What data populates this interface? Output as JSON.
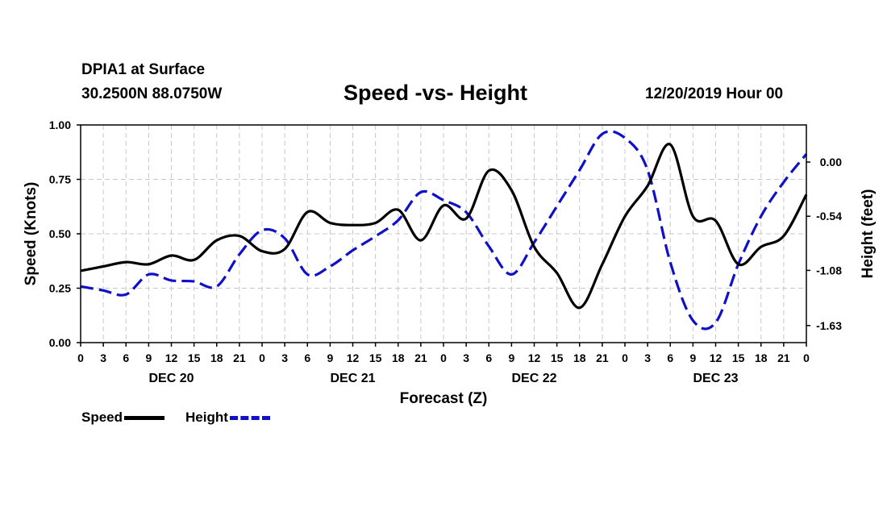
{
  "header": {
    "station": "DPIA1 at Surface",
    "coords": "30.2500N 88.0750W",
    "title": "Speed -vs- Height",
    "timestamp": "12/20/2019 Hour 00"
  },
  "legend": {
    "speed_label": "Speed",
    "height_label": "Height"
  },
  "colors": {
    "speed": "#000000",
    "height": "#1010c8",
    "grid": "#c8c8c8"
  },
  "chart_data": {
    "type": "line",
    "title": "Speed -vs- Height",
    "xlabel": "Forecast (Z)",
    "ylabel": "Speed (Knots)",
    "y2label": "Height (feet)",
    "xlim": [
      0,
      96
    ],
    "ylim": [
      0,
      1
    ],
    "y2lim": [
      -1.8,
      0.37
    ],
    "x_ticks": [
      0,
      3,
      6,
      9,
      12,
      15,
      18,
      21,
      24,
      27,
      30,
      33,
      36,
      39,
      42,
      45,
      48,
      51,
      54,
      57,
      60,
      63,
      66,
      69,
      72,
      75,
      78,
      81,
      84,
      87,
      90,
      93,
      96
    ],
    "x_tick_labels": [
      "0",
      "3",
      "6",
      "9",
      "12",
      "15",
      "18",
      "21",
      "0",
      "3",
      "6",
      "9",
      "12",
      "15",
      "18",
      "21",
      "0",
      "3",
      "6",
      "9",
      "12",
      "15",
      "18",
      "21",
      "0",
      "3",
      "6",
      "9",
      "12",
      "15",
      "18",
      "21",
      "0"
    ],
    "day_labels": [
      {
        "x": 12,
        "label": "DEC 20"
      },
      {
        "x": 36,
        "label": "DEC 21"
      },
      {
        "x": 60,
        "label": "DEC 22"
      },
      {
        "x": 84,
        "label": "DEC 23"
      }
    ],
    "y_ticks": [
      0.0,
      0.25,
      0.5,
      0.75,
      1.0
    ],
    "y_tick_labels": [
      "0.00",
      "0.25",
      "0.50",
      "0.75",
      "1.00"
    ],
    "y2_ticks": [
      0.0,
      -0.54,
      -1.08,
      -1.63
    ],
    "y2_tick_labels": [
      "0.00",
      "-0.54",
      "-1.08",
      "-1.63"
    ],
    "grid": true,
    "legend_position": "bottom-left",
    "series": [
      {
        "name": "Speed",
        "axis": "left",
        "style": "solid",
        "x": [
          0,
          3,
          6,
          9,
          12,
          15,
          18,
          21,
          24,
          27,
          30,
          33,
          36,
          39,
          42,
          45,
          48,
          51,
          54,
          57,
          60,
          63,
          66,
          69,
          72,
          75,
          78,
          81,
          84,
          87,
          90,
          93,
          96
        ],
        "values": [
          0.33,
          0.35,
          0.37,
          0.36,
          0.4,
          0.38,
          0.47,
          0.49,
          0.42,
          0.43,
          0.6,
          0.55,
          0.54,
          0.55,
          0.61,
          0.47,
          0.63,
          0.57,
          0.79,
          0.7,
          0.44,
          0.32,
          0.16,
          0.36,
          0.58,
          0.72,
          0.91,
          0.58,
          0.56,
          0.36,
          0.44,
          0.49,
          0.68
        ]
      },
      {
        "name": "Height",
        "axis": "right",
        "style": "dashed",
        "x": [
          0,
          3,
          6,
          9,
          12,
          15,
          18,
          21,
          24,
          27,
          30,
          33,
          36,
          39,
          42,
          45,
          48,
          51,
          54,
          57,
          60,
          63,
          66,
          69,
          72,
          75,
          78,
          81,
          84,
          87,
          90,
          93,
          96
        ],
        "values": [
          -1.24,
          -1.28,
          -1.32,
          -1.12,
          -1.18,
          -1.19,
          -1.24,
          -0.92,
          -0.68,
          -0.76,
          -1.12,
          -1.04,
          -0.88,
          -0.74,
          -0.58,
          -0.3,
          -0.38,
          -0.5,
          -0.84,
          -1.12,
          -0.8,
          -0.44,
          -0.08,
          0.28,
          0.24,
          -0.08,
          -1.0,
          -1.58,
          -1.6,
          -1.02,
          -0.54,
          -0.2,
          0.08
        ]
      }
    ]
  }
}
